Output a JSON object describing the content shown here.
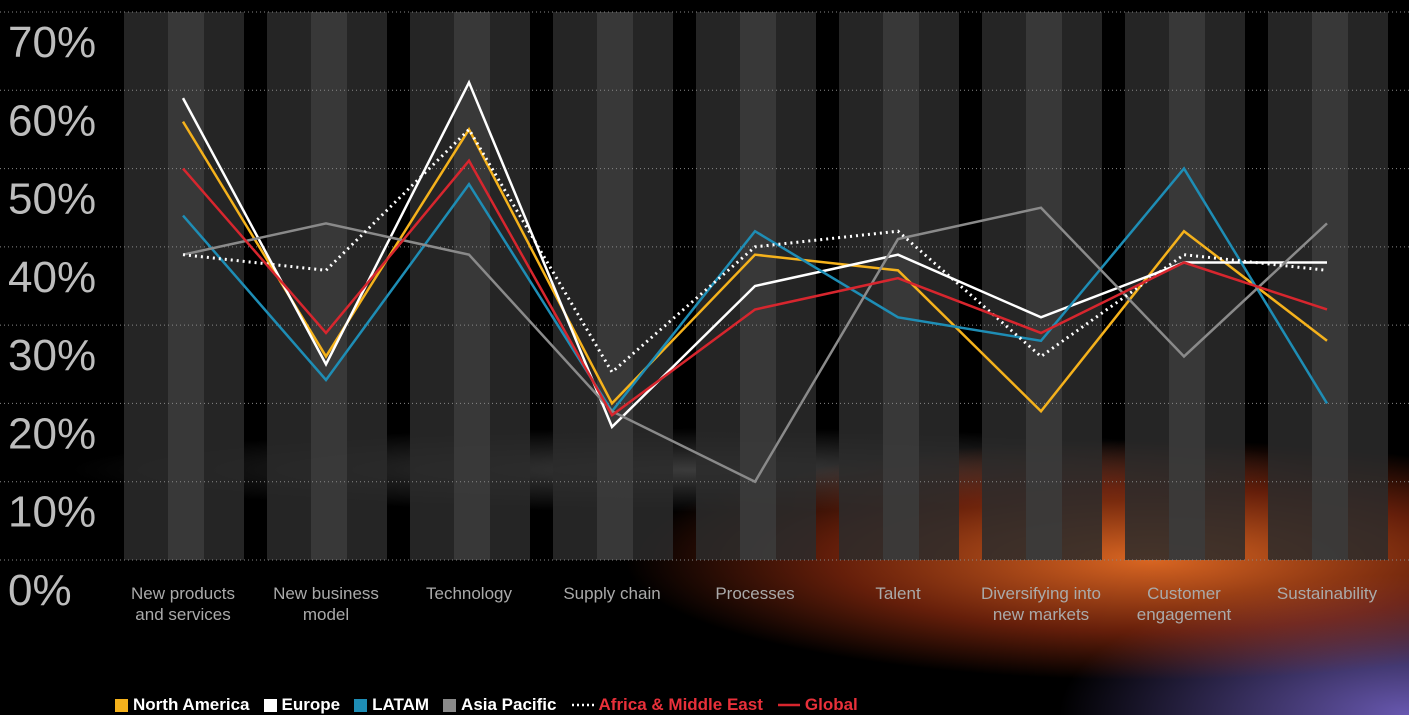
{
  "chart_data": {
    "type": "line",
    "categories": [
      "New products and services",
      "New business model",
      "Technology",
      "Supply chain",
      "Processes",
      "Talent",
      "Diversifying into new markets",
      "Customer engagement",
      "Sustainability"
    ],
    "series": [
      {
        "name": "North America",
        "color": "#f5b21c",
        "dash": "solid",
        "values": [
          56,
          26,
          55,
          20,
          39,
          37,
          19,
          42,
          28
        ]
      },
      {
        "name": "Europe",
        "color": "#ffffff",
        "dash": "solid",
        "values": [
          59,
          25,
          61,
          17,
          35,
          39,
          31,
          38,
          38
        ]
      },
      {
        "name": "LATAM",
        "color": "#1e8db5",
        "dash": "solid",
        "values": [
          44,
          23,
          48,
          19,
          42,
          31,
          28,
          50,
          20
        ]
      },
      {
        "name": "Asia Pacific",
        "color": "#8a8a8a",
        "dash": "solid",
        "values": [
          39,
          43,
          39,
          19,
          10,
          41,
          45,
          26,
          43
        ]
      },
      {
        "name": "Africa & Middle East",
        "color": "#ffffff",
        "dash": "dotted",
        "values": [
          39,
          37,
          55,
          24,
          40,
          42,
          26,
          39,
          37
        ]
      },
      {
        "name": "Global",
        "color": "#d7262e",
        "dash": "solid",
        "values": [
          50,
          29,
          51,
          18.5,
          32,
          36,
          29,
          38,
          32
        ]
      }
    ],
    "ylim": [
      0,
      70
    ],
    "yticks": [
      {
        "value": 0,
        "label": "0%"
      },
      {
        "value": 10,
        "label": "10%"
      },
      {
        "value": 20,
        "label": "20%"
      },
      {
        "value": 30,
        "label": "30%"
      },
      {
        "value": 40,
        "label": "40%"
      },
      {
        "value": 50,
        "label": "50%"
      },
      {
        "value": 60,
        "label": "60%"
      },
      {
        "value": 70,
        "label": "70%"
      }
    ],
    "grid": true
  }
}
